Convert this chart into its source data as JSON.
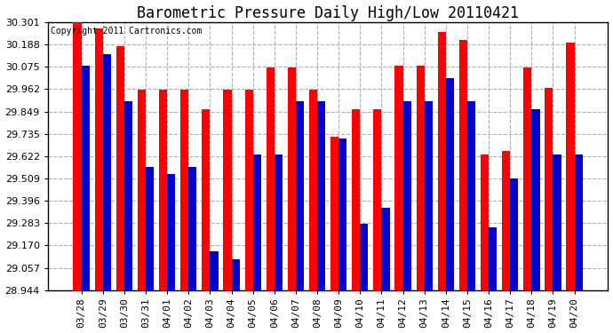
{
  "title": "Barometric Pressure Daily High/Low 20110421",
  "copyright": "Copyright 2011 Cartronics.com",
  "categories": [
    "03/28",
    "03/29",
    "03/30",
    "03/31",
    "04/01",
    "04/02",
    "04/03",
    "04/04",
    "04/05",
    "04/06",
    "04/07",
    "04/08",
    "04/09",
    "04/10",
    "04/11",
    "04/12",
    "04/13",
    "04/14",
    "04/15",
    "04/16",
    "04/17",
    "04/18",
    "04/19",
    "04/20"
  ],
  "highs": [
    30.3,
    30.27,
    30.18,
    29.96,
    29.96,
    29.96,
    29.86,
    29.96,
    29.96,
    30.07,
    30.07,
    29.96,
    29.72,
    29.86,
    29.86,
    30.08,
    30.08,
    30.25,
    30.21,
    29.63,
    29.65,
    30.07,
    29.97,
    30.2
  ],
  "lows": [
    30.08,
    30.14,
    29.9,
    29.57,
    29.53,
    29.57,
    29.14,
    29.1,
    29.63,
    29.63,
    29.9,
    29.9,
    29.71,
    29.28,
    29.36,
    29.9,
    29.9,
    30.02,
    29.9,
    29.26,
    29.51,
    29.86,
    29.63,
    29.63
  ],
  "high_color": "#ff0000",
  "low_color": "#0000cc",
  "background_color": "#ffffff",
  "grid_color": "#b0b0b0",
  "ylim_min": 28.944,
  "ylim_max": 30.301,
  "yticks": [
    28.944,
    29.057,
    29.17,
    29.283,
    29.396,
    29.509,
    29.622,
    29.735,
    29.849,
    29.962,
    30.075,
    30.188,
    30.301
  ],
  "bar_width": 0.38,
  "title_fontsize": 12,
  "tick_fontsize": 8,
  "copyright_fontsize": 7
}
